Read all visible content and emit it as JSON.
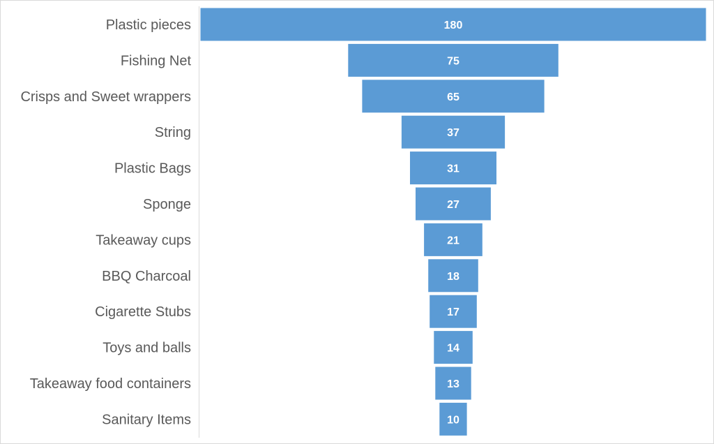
{
  "chart_data": {
    "type": "bar",
    "subtype": "funnel",
    "orientation": "horizontal",
    "categories": [
      "Plastic pieces",
      "Fishing Net",
      "Crisps and Sweet wrappers",
      "String",
      "Plastic Bags",
      "Sponge",
      "Takeaway cups",
      "BBQ Charcoal",
      "Cigarette Stubs",
      "Toys and balls",
      "Takeaway food containers",
      "Sanitary Items"
    ],
    "values": [
      180,
      75,
      65,
      37,
      31,
      27,
      21,
      18,
      17,
      14,
      13,
      10
    ],
    "title": "",
    "xlabel": "",
    "ylabel": "",
    "grid": false,
    "legend": "none",
    "bar_color": "#5b9bd5",
    "label_color": "#595959",
    "value_label_color": "#ffffff"
  }
}
